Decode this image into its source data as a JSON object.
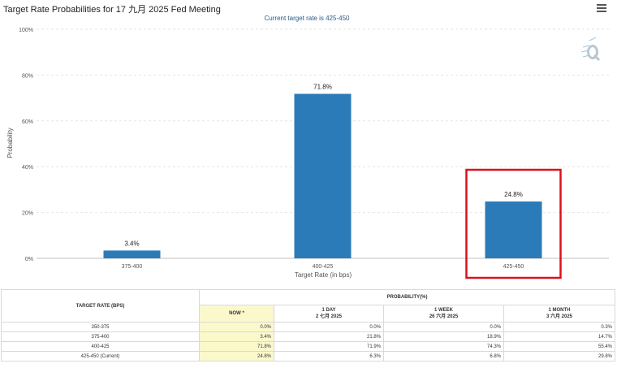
{
  "header": {
    "title": "Target Rate Probabilities for 17 九月 2025 Fed Meeting",
    "menu_icon": "hamburger-menu-icon",
    "logo_icon": "q-logo-icon"
  },
  "chart_data": {
    "type": "bar",
    "subtitle": "Current target rate is 425-450",
    "categories": [
      "375-400",
      "400-425",
      "425-450"
    ],
    "values": [
      3.4,
      71.8,
      24.8
    ],
    "value_labels": [
      "3.4%",
      "71.8%",
      "24.8%"
    ],
    "xlabel": "Target Rate (in bps)",
    "ylabel": "Probability",
    "ylim": [
      0,
      100
    ],
    "yticks": [
      "0%",
      "20%",
      "40%",
      "60%",
      "80%",
      "100%"
    ],
    "grid": true,
    "bar_color": "#2b7bb9",
    "highlighted_category": "425-450",
    "highlight_color": "#d9131b"
  },
  "table": {
    "rate_header": "TARGET RATE (BPS)",
    "prob_header": "PROBABILITY(%)",
    "columns": [
      {
        "line1": "NOW *",
        "line2": ""
      },
      {
        "line1": "1 DAY",
        "line2": "2 七月 2025"
      },
      {
        "line1": "1 WEEK",
        "line2": "26 六月 2025"
      },
      {
        "line1": "1 MONTH",
        "line2": "3 六月 2025"
      }
    ],
    "rows": [
      {
        "rate": "350-375",
        "now": "0.0%",
        "day": "0.0%",
        "week": "0.0%",
        "month": "0.3%"
      },
      {
        "rate": "375-400",
        "now": "3.4%",
        "day": "21.8%",
        "week": "18.9%",
        "month": "14.7%"
      },
      {
        "rate": "400-425",
        "now": "71.8%",
        "day": "71.9%",
        "week": "74.3%",
        "month": "55.4%"
      },
      {
        "rate": "425-450 (Current)",
        "now": "24.8%",
        "day": "6.3%",
        "week": "6.8%",
        "month": "29.8%"
      }
    ],
    "now_highlight_color": "#fbf8cc"
  }
}
